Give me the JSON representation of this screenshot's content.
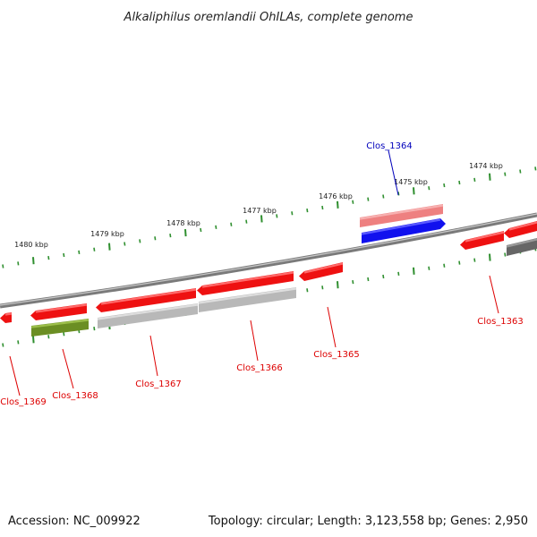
{
  "title": "Alkaliphilus oremlandii OhILAs, complete genome",
  "footer": {
    "accession": "Accession: NC_009922",
    "stats": "Topology: circular; Length: 3,123,558 bp; Genes: 2,950"
  },
  "colors": {
    "backbone": "#7a7a7a",
    "tick": "#2f8f2f",
    "gene_red": "#ee1111",
    "gene_pink": "#ee8080",
    "gene_blue": "#1111ee",
    "gene_gray": "#b8b8b8",
    "gene_darkgray": "#666666",
    "gene_olive": "#6b8e23",
    "label_red": "#dd0000",
    "label_blue": "#0000bb"
  },
  "ticks": [
    {
      "label": "1474 kbp"
    },
    {
      "label": "1475 kbp"
    },
    {
      "label": "1476 kbp"
    },
    {
      "label": "1477 kbp"
    },
    {
      "label": "1478 kbp"
    },
    {
      "label": "1479 kbp"
    },
    {
      "label": "1480 kbp"
    }
  ],
  "genes": [
    {
      "name": "Clos_1363",
      "color": "red"
    },
    {
      "name": "Clos_1364",
      "color": "blue"
    },
    {
      "name": "Clos_1365",
      "color": "red"
    },
    {
      "name": "Clos_1366",
      "color": "red"
    },
    {
      "name": "Clos_1367",
      "color": "red"
    },
    {
      "name": "Clos_1368",
      "color": "red"
    },
    {
      "name": "Clos_1369",
      "color": "red"
    }
  ]
}
